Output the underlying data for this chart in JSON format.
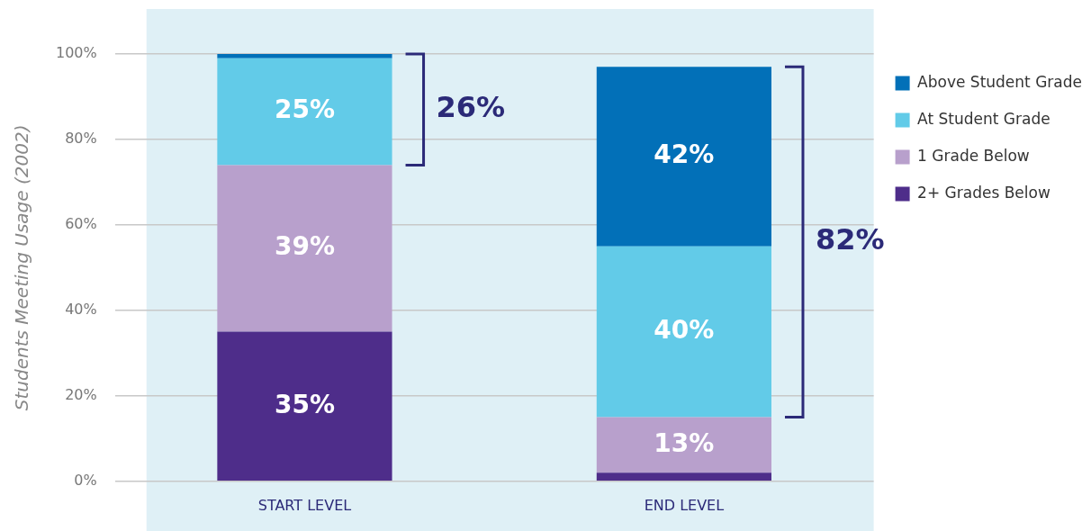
{
  "chart_data": {
    "type": "bar",
    "stacked": true,
    "ylabel": "Students Meeting Usage (2002)",
    "categories": [
      "START LEVEL",
      "END LEVEL"
    ],
    "series": [
      {
        "name": "2+ Grades Below",
        "color": "#4e2d8a",
        "values": [
          35,
          2
        ],
        "value_labels": [
          "35%",
          null
        ]
      },
      {
        "name": "1 Grade Below",
        "color": "#b8a0cc",
        "values": [
          39,
          13
        ],
        "value_labels": [
          "39%",
          "13%"
        ]
      },
      {
        "name": "At Student Grade",
        "color": "#62cbe8",
        "values": [
          25,
          40
        ],
        "value_labels": [
          "25%",
          "40%"
        ]
      },
      {
        "name": "Above Student Grade",
        "color": "#0270b8",
        "values": [
          1,
          42
        ],
        "value_labels": [
          null,
          "42%"
        ]
      }
    ],
    "ylim": [
      0,
      100
    ],
    "yticks": [
      {
        "value": 0,
        "label": "0%"
      },
      {
        "value": 20,
        "label": "20%"
      },
      {
        "value": 40,
        "label": "40%"
      },
      {
        "value": 60,
        "label": "60%"
      },
      {
        "value": 80,
        "label": "80%"
      },
      {
        "value": 100,
        "label": "100%"
      }
    ],
    "grid": "y",
    "legend": "right",
    "annotations": [
      "26%",
      "82%"
    ]
  }
}
